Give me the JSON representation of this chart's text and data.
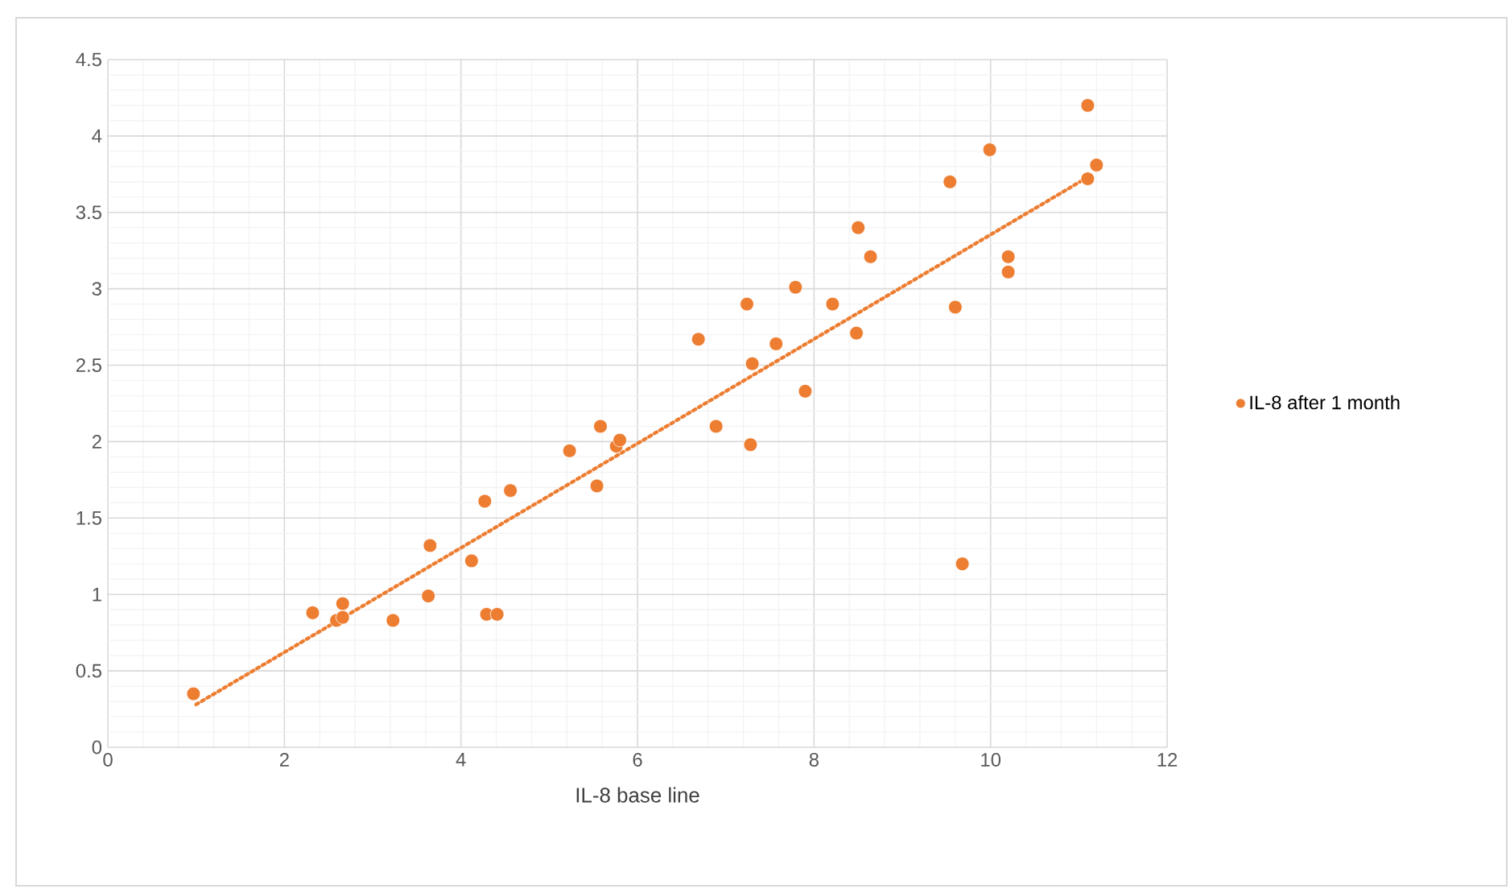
{
  "chart_data": {
    "type": "scatter",
    "xlabel": "IL-8 base line",
    "xlim": [
      0,
      12
    ],
    "xticks": [
      0,
      2,
      4,
      6,
      8,
      10,
      12
    ],
    "ylim": [
      0,
      4.5
    ],
    "yticks": [
      0,
      0.5,
      1,
      1.5,
      2,
      2.5,
      3,
      3.5,
      4,
      4.5
    ],
    "grid": true,
    "legend": "right",
    "marker": "circle",
    "series": [
      {
        "name": "IL-8 after 1 month",
        "color": "#ed7d31",
        "x": [
          0.97,
          2.32,
          2.59,
          2.66,
          2.66,
          3.23,
          3.63,
          3.65,
          4.12,
          4.27,
          4.29,
          4.41,
          4.56,
          5.23,
          5.54,
          5.58,
          5.76,
          5.8,
          6.69,
          6.89,
          7.24,
          7.28,
          7.3,
          7.57,
          7.79,
          7.9,
          8.21,
          8.48,
          8.5,
          8.64,
          9.54,
          9.6,
          9.68,
          9.99,
          10.2,
          10.2,
          11.1,
          11.1,
          11.2
        ],
        "values": [
          0.35,
          0.88,
          0.83,
          0.85,
          0.94,
          0.83,
          0.99,
          1.32,
          1.22,
          1.61,
          0.87,
          0.87,
          1.68,
          1.94,
          1.71,
          2.1,
          1.97,
          2.01,
          2.67,
          2.1,
          2.9,
          1.98,
          2.51,
          2.64,
          3.01,
          2.33,
          2.9,
          2.71,
          3.4,
          3.21,
          3.7,
          2.88,
          1.2,
          3.91,
          3.21,
          3.11,
          4.2,
          3.72,
          3.81
        ]
      },
      {
        "color": "#ed7d31",
        "type": "line",
        "marker": "none",
        "line_style": "dotted",
        "x": [
          1,
          11.1
        ],
        "values": [
          0.28,
          3.73
        ]
      }
    ]
  }
}
